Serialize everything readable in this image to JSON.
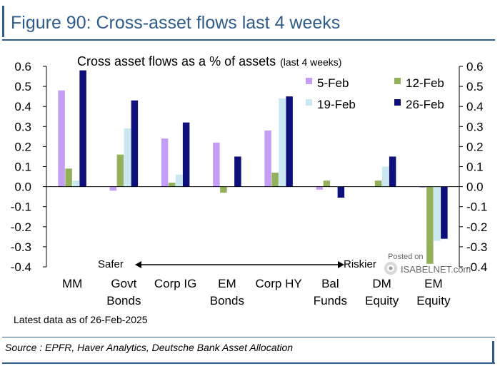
{
  "figure_title": "Figure 90: Cross-asset flows last 4 weeks",
  "note": "Latest data as of 26-Feb-2025",
  "source": "Source : EPFR, Haver Analytics, Deutsche Bank Asset Allocation",
  "watermark": {
    "posted": "Posted on",
    "name": "ISABELNET.com"
  },
  "chart_data": {
    "type": "bar",
    "title": "Cross asset flows as a % of assets",
    "title_suffix": "(last 4 weeks)",
    "categories": [
      "MM",
      "Govt Bonds",
      "Corp IG",
      "EM Bonds",
      "Corp HY",
      "Bal Funds",
      "DM Equity",
      "EM Equity"
    ],
    "category_lines": [
      [
        "MM"
      ],
      [
        "Govt",
        "Bonds"
      ],
      [
        "Corp IG"
      ],
      [
        "EM",
        "Bonds"
      ],
      [
        "Corp HY"
      ],
      [
        "Bal",
        "Funds"
      ],
      [
        "DM",
        "Equity"
      ],
      [
        "EM",
        "Equity"
      ]
    ],
    "series": [
      {
        "name": "5-Feb",
        "color": "#c49ef5",
        "values": [
          0.48,
          -0.02,
          0.24,
          0.22,
          0.28,
          -0.015,
          0.0,
          -0.005
        ]
      },
      {
        "name": "12-Feb",
        "color": "#93b15b",
        "values": [
          0.09,
          0.16,
          0.02,
          -0.03,
          0.07,
          0.03,
          0.03,
          -0.385
        ]
      },
      {
        "name": "19-Feb",
        "color": "#c9e8f2",
        "values": [
          0.03,
          0.29,
          0.06,
          0.0,
          0.44,
          0.0,
          0.1,
          -0.27
        ]
      },
      {
        "name": "26-Feb",
        "color": "#0d0f7a",
        "values": [
          0.58,
          0.43,
          0.32,
          0.15,
          0.45,
          -0.055,
          0.15,
          -0.26
        ]
      }
    ],
    "ylim": [
      -0.4,
      0.6
    ],
    "yticks": [
      "0.6",
      "0.5",
      "0.4",
      "0.3",
      "0.2",
      "0.1",
      "0.0",
      "-0.1",
      "-0.2",
      "-0.3",
      "-0.4"
    ],
    "annotation": {
      "left": "Safer",
      "right": "Riskier"
    },
    "grid": false,
    "legend": "top-right"
  }
}
